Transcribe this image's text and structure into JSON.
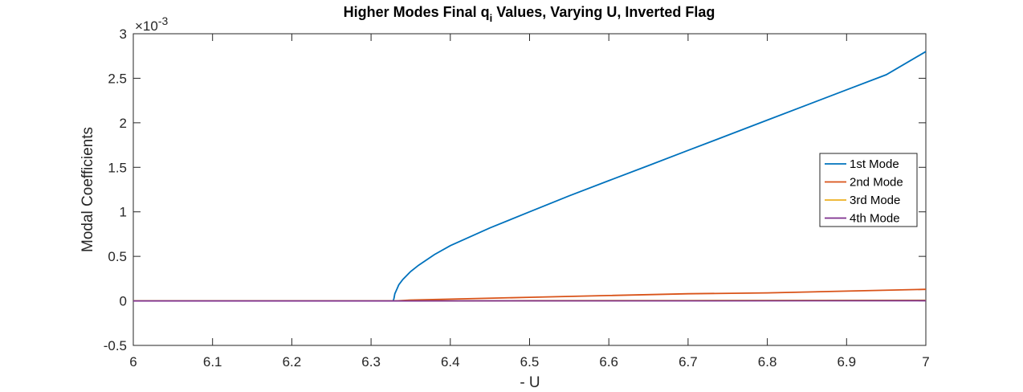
{
  "chart_data": {
    "type": "line",
    "title_main": "Higher Modes Final q",
    "title_sub": "i",
    "title_rest": " Values, Varying U, Inverted Flag",
    "xlabel": "- U",
    "ylabel": "Modal Coefficients",
    "y_exponent_base": "×10",
    "y_exponent_power": "-3",
    "xlim": [
      6,
      7
    ],
    "ylim": [
      -0.0005,
      0.003
    ],
    "xticks": [
      6,
      6.1,
      6.2,
      6.3,
      6.4,
      6.5,
      6.6,
      6.7,
      6.8,
      6.9,
      7
    ],
    "xtick_labels": [
      "6",
      "6.1",
      "6.2",
      "6.3",
      "6.4",
      "6.5",
      "6.6",
      "6.7",
      "6.8",
      "6.9",
      "7"
    ],
    "yticks": [
      -0.0005,
      0,
      0.0005,
      0.001,
      0.0015,
      0.002,
      0.0025,
      0.003
    ],
    "ytick_labels": [
      "-0.5",
      "0",
      "0.5",
      "1",
      "1.5",
      "2",
      "2.5",
      "3"
    ],
    "legend_position": "right",
    "grid": false,
    "series": [
      {
        "name": "1st Mode",
        "color": "#0072BD",
        "x": [
          6.0,
          6.1,
          6.2,
          6.3,
          6.328,
          6.329,
          6.33,
          6.332,
          6.335,
          6.34,
          6.35,
          6.36,
          6.38,
          6.4,
          6.45,
          6.5,
          6.55,
          6.6,
          6.65,
          6.7,
          6.75,
          6.8,
          6.85,
          6.9,
          6.95,
          7.0
        ],
        "y": [
          0,
          0,
          0,
          0,
          0,
          3e-05,
          8e-05,
          0.00012,
          0.00018,
          0.00024,
          0.00033,
          0.0004,
          0.00052,
          0.00062,
          0.00082,
          0.001,
          0.00118,
          0.00135,
          0.00152,
          0.00169,
          0.00186,
          0.00203,
          0.0022,
          0.00237,
          0.00254,
          0.0028
        ]
      },
      {
        "name": "2nd Mode",
        "color": "#D95319",
        "x": [
          6.0,
          6.1,
          6.2,
          6.3,
          6.33,
          6.35,
          6.4,
          6.5,
          6.6,
          6.7,
          6.8,
          6.9,
          7.0
        ],
        "y": [
          0,
          0,
          0,
          0,
          0,
          1e-05,
          2e-05,
          4e-05,
          6e-05,
          8e-05,
          9e-05,
          0.00011,
          0.00013
        ]
      },
      {
        "name": "3rd Mode",
        "color": "#EDB120",
        "x": [
          6.0,
          6.33,
          6.5,
          6.7,
          7.0
        ],
        "y": [
          0,
          0,
          2e-06,
          4e-06,
          7e-06
        ]
      },
      {
        "name": "4th Mode",
        "color": "#7E2F8E",
        "x": [
          6.0,
          6.33,
          6.5,
          6.7,
          7.0
        ],
        "y": [
          0,
          0,
          1e-06,
          1e-06,
          2e-06
        ]
      }
    ]
  }
}
